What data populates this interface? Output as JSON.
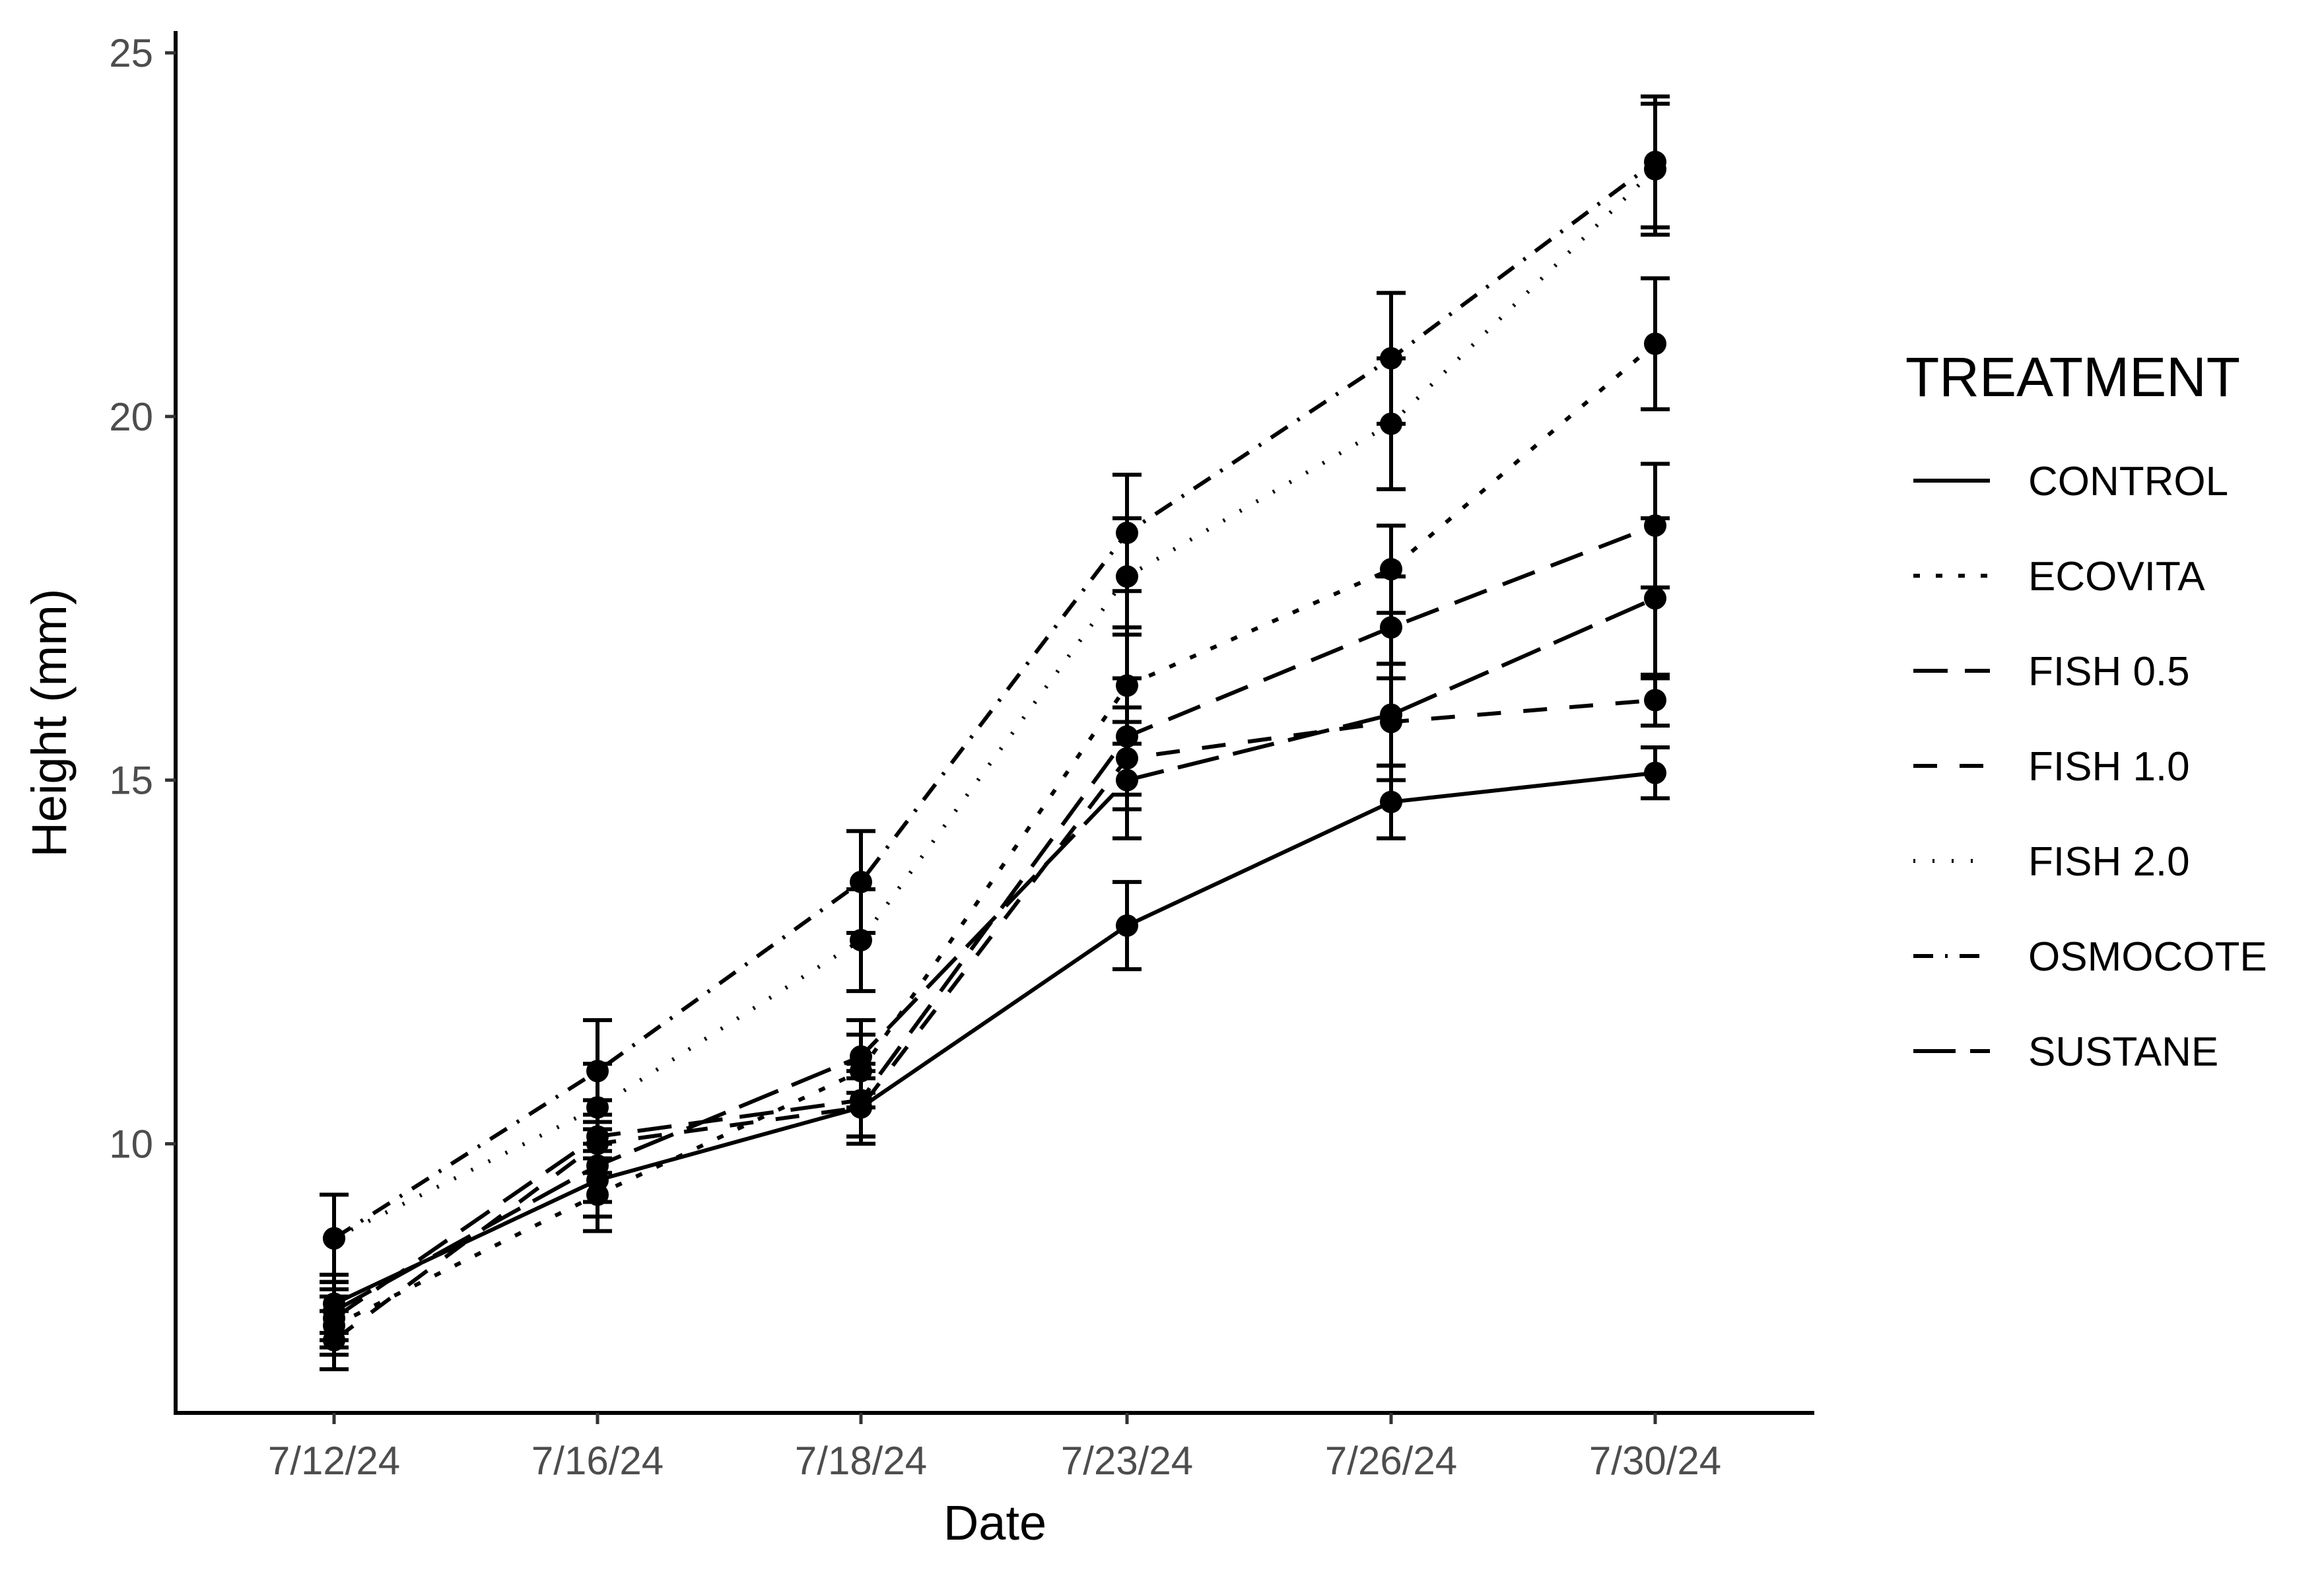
{
  "chart_data": {
    "type": "line",
    "xlabel": "Date",
    "ylabel": "Height (mm)",
    "categories": [
      "7/12/24",
      "7/16/24",
      "7/18/24",
      "7/23/24",
      "7/26/24",
      "7/30/24"
    ],
    "ylim": [
      6.3,
      25.3
    ],
    "yticks": [
      10,
      15,
      20,
      25
    ],
    "grid": false,
    "legend": {
      "title": "TREATMENT",
      "position": "right"
    },
    "series": [
      {
        "name": "CONTROL",
        "values": [
          7.8,
          9.5,
          10.5,
          13.0,
          14.7,
          15.1
        ],
        "errors": [
          0.4,
          0.5,
          0.5,
          0.6,
          0.5,
          0.35
        ]
      },
      {
        "name": "ECOVITA",
        "values": [
          7.5,
          9.3,
          11.0,
          16.3,
          17.9,
          21.0
        ],
        "errors": [
          0.4,
          0.5,
          0.5,
          0.8,
          0.6,
          0.9
        ]
      },
      {
        "name": "FISH 0.5",
        "values": [
          7.6,
          10.1,
          10.6,
          15.6,
          17.1,
          18.5
        ],
        "errors": [
          0.4,
          0.5,
          0.5,
          0.8,
          0.7,
          0.85
        ]
      },
      {
        "name": "FISH 1.0",
        "values": [
          7.3,
          10.0,
          10.5,
          15.3,
          15.8,
          16.1
        ],
        "errors": [
          0.4,
          0.4,
          0.4,
          0.7,
          0.8,
          0.35
        ]
      },
      {
        "name": "FISH 2.0",
        "values": [
          8.7,
          10.5,
          12.8,
          17.8,
          19.9,
          23.4
        ],
        "errors": [
          0.6,
          0.6,
          0.7,
          0.8,
          0.9,
          0.9
        ]
      },
      {
        "name": "OSMOCOTE",
        "values": [
          8.7,
          11.0,
          13.6,
          18.4,
          20.8,
          23.5
        ],
        "errors": [
          0.6,
          0.7,
          0.7,
          0.8,
          0.9,
          0.9
        ]
      },
      {
        "name": "SUSTANE",
        "values": [
          7.7,
          9.7,
          11.2,
          15.0,
          15.9,
          17.5
        ],
        "errors": [
          0.4,
          0.5,
          0.5,
          0.8,
          0.7,
          1.1
        ]
      }
    ]
  }
}
